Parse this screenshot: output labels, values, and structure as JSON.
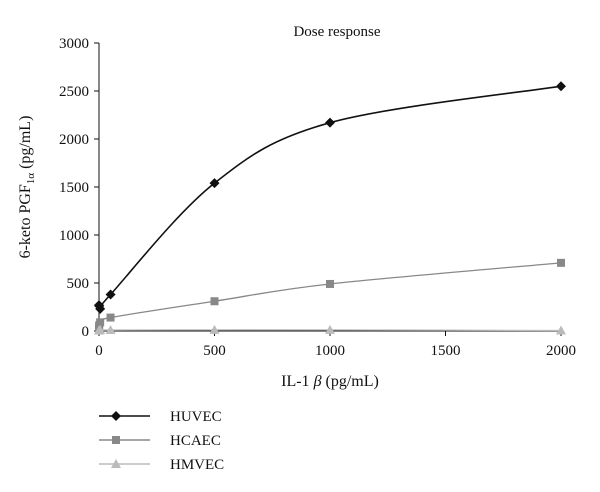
{
  "chart_data": {
    "type": "line",
    "title": "Dose response",
    "xlabel_prefix": "IL-1 ",
    "xlabel_greek": "β",
    "xlabel_suffix": " (pg/mL)",
    "ylabel_main": "6-keto PGF",
    "ylabel_sub": "1α",
    "ylabel_unit": " (pg/mL)",
    "xlim": [
      0,
      2000
    ],
    "ylim": [
      0,
      3000
    ],
    "xticks": [
      0,
      500,
      1000,
      1500,
      2000
    ],
    "yticks": [
      0,
      500,
      1000,
      1500,
      2000,
      2500,
      3000
    ],
    "x_tick_labels": [
      "0",
      "500",
      "1000",
      "1500",
      "2000"
    ],
    "y_tick_labels": [
      "0",
      "500",
      "1000",
      "1500",
      "2000",
      "2500",
      "3000"
    ],
    "grid": false,
    "legend_position": "bottom-left",
    "series": [
      {
        "name": "HUVEC",
        "marker": "diamond",
        "color": "#111111",
        "x": [
          0,
          1,
          5,
          50,
          500,
          1000,
          2000
        ],
        "y": [
          270,
          260,
          230,
          380,
          1540,
          2170,
          2550
        ]
      },
      {
        "name": "HCAEC",
        "marker": "square",
        "color": "#888888",
        "x": [
          0,
          1,
          5,
          50,
          500,
          1000,
          2000
        ],
        "y": [
          40,
          60,
          90,
          140,
          310,
          490,
          710
        ]
      },
      {
        "name": "HMVEC",
        "marker": "triangle",
        "color": "#bbbbbb",
        "x": [
          0,
          1,
          5,
          50,
          500,
          1000,
          2000
        ],
        "y": [
          5,
          8,
          10,
          10,
          12,
          12,
          5
        ]
      }
    ]
  }
}
